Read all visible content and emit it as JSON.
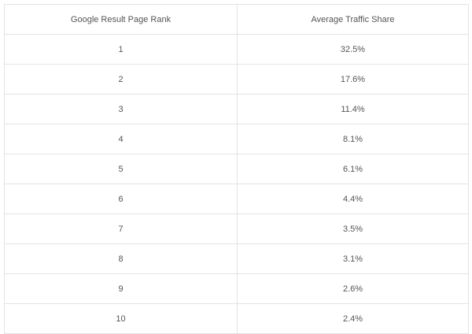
{
  "chart_data": {
    "type": "table",
    "columns": [
      "Google Result Page Rank",
      "Average Traffic Share"
    ],
    "rows": [
      [
        "1",
        "32.5%"
      ],
      [
        "2",
        "17.6%"
      ],
      [
        "3",
        "11.4%"
      ],
      [
        "4",
        "8.1%"
      ],
      [
        "5",
        "6.1%"
      ],
      [
        "6",
        "4.4%"
      ],
      [
        "7",
        "3.5%"
      ],
      [
        "8",
        "3.1%"
      ],
      [
        "9",
        "2.6%"
      ],
      [
        "10",
        "2.4%"
      ]
    ]
  }
}
